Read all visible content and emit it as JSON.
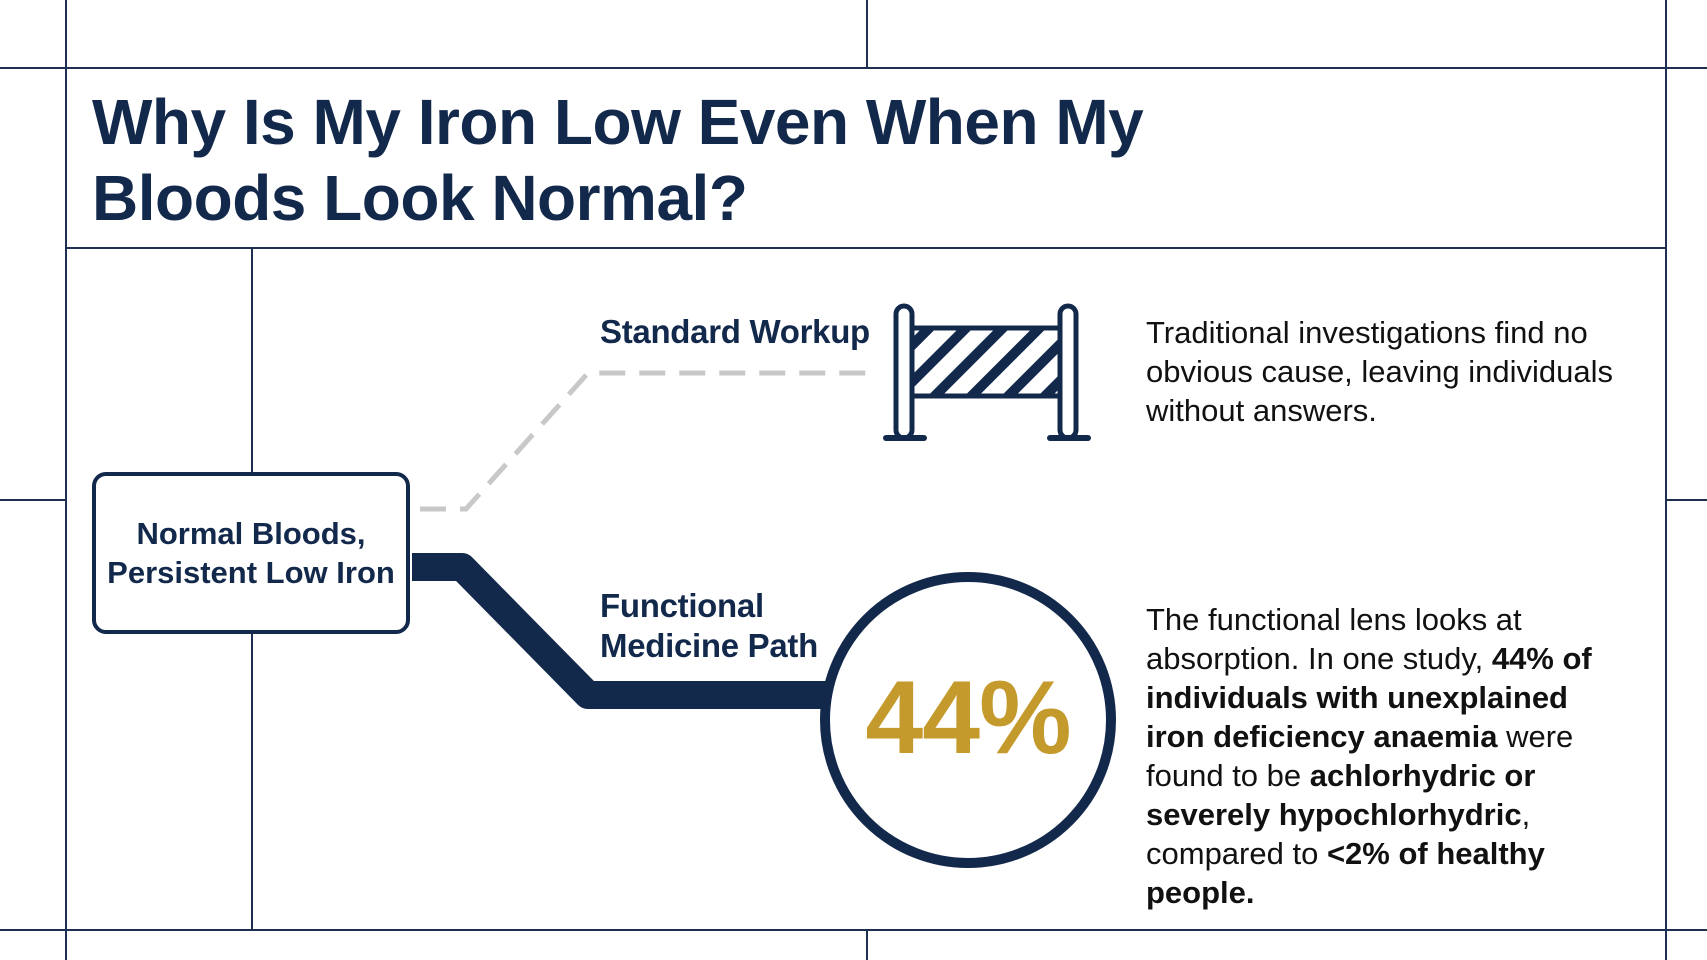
{
  "title": "Why Is My Iron Low Even When My Bloods Look Normal?",
  "source_node": {
    "line1": "Normal Bloods,",
    "line2": "Persistent Low Iron"
  },
  "paths": {
    "standard": {
      "label": "Standard Workup",
      "icon": "barrier-icon",
      "description": "Traditional investigations find no obvious cause, leaving individuals without answers."
    },
    "functional": {
      "label": "Functional Medicine Path",
      "stat": "44%",
      "description_parts": [
        {
          "text": "The functional lens looks at absorption. In one study, ",
          "bold": false
        },
        {
          "text": "44% of individuals with unexplained iron deficiency anaemia",
          "bold": true
        },
        {
          "text": " were found to be ",
          "bold": false
        },
        {
          "text": "achlorhydric or severely hypochlorhydric",
          "bold": true
        },
        {
          "text": ", compared to ",
          "bold": false
        },
        {
          "text": "<2% of healthy people.",
          "bold": true
        }
      ]
    }
  },
  "colors": {
    "navy": "#13294b",
    "gold": "#c49a2c",
    "dashed_gray": "#c8c8c8",
    "grid_line": "#1f2f4f"
  }
}
